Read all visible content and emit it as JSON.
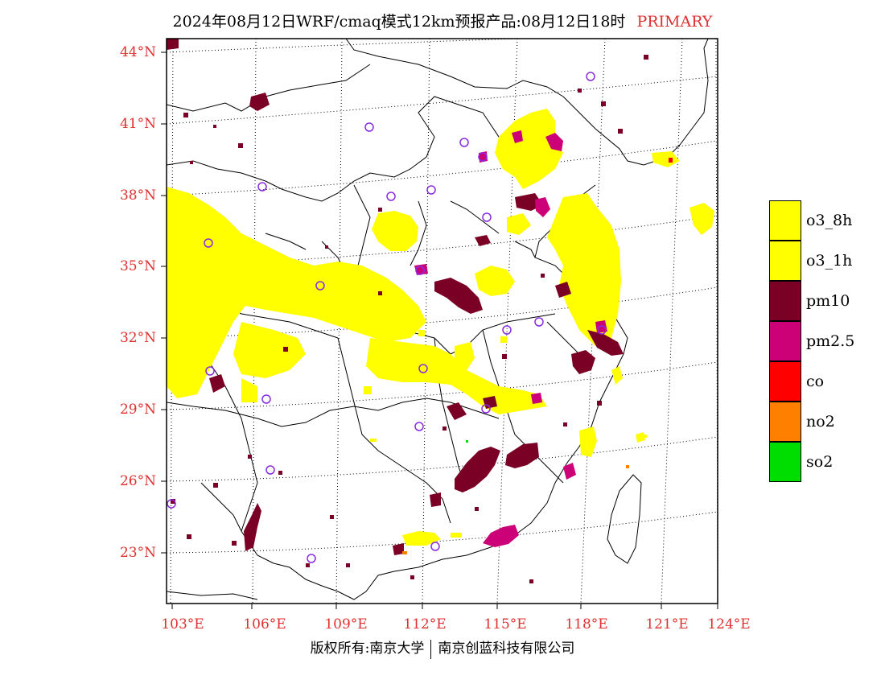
{
  "title": {
    "main": "2024年08月12日WRF/cmaq模式12km预报产品:08月12日18时",
    "tag": "PRIMARY"
  },
  "axes": {
    "lat_labels": [
      {
        "text": "44°N",
        "lat": 44
      },
      {
        "text": "41°N",
        "lat": 41
      },
      {
        "text": "38°N",
        "lat": 38
      },
      {
        "text": "35°N",
        "lat": 35
      },
      {
        "text": "32°N",
        "lat": 32
      },
      {
        "text": "29°N",
        "lat": 29
      },
      {
        "text": "26°N",
        "lat": 26
      },
      {
        "text": "23°N",
        "lat": 23
      }
    ],
    "lon_labels": [
      {
        "text": "103°E",
        "lon": 103
      },
      {
        "text": "106°E",
        "lon": 106
      },
      {
        "text": "109°E",
        "lon": 109
      },
      {
        "text": "112°E",
        "lon": 112
      },
      {
        "text": "115°E",
        "lon": 115
      },
      {
        "text": "118°E",
        "lon": 118
      },
      {
        "text": "121°E",
        "lon": 121
      },
      {
        "text": "124°E",
        "lon": 124
      }
    ]
  },
  "legend": [
    {
      "label": "o3_8h",
      "color": "#ffff00"
    },
    {
      "label": "o3_1h",
      "color": "#ffff00"
    },
    {
      "label": "pm10",
      "color": "#7a0026"
    },
    {
      "label": "pm2.5",
      "color": "#cc0077"
    },
    {
      "label": "co",
      "color": "#ff0000"
    },
    {
      "label": "no2",
      "color": "#ff8000"
    },
    {
      "label": "so2",
      "color": "#00dd00"
    }
  ],
  "colors": {
    "label_red": "#e03030",
    "city_marker": "#8a2be2"
  },
  "footer": {
    "left": "版权所有:南京大学",
    "right": "南京创蓝科技有限公司"
  }
}
